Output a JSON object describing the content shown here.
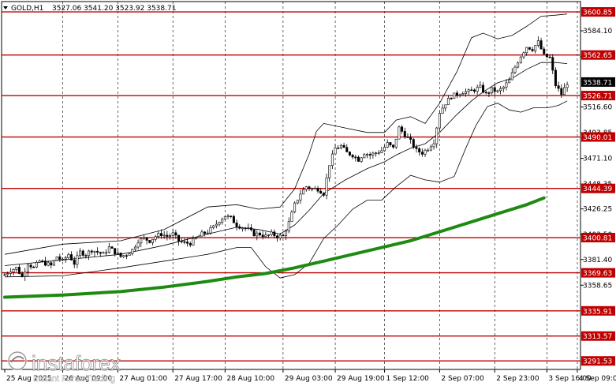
{
  "header": {
    "symbol": "GOLD,H1",
    "ohlc": "3527.06 3541.20 3523.92 3538.71"
  },
  "watermark": {
    "brand": "instaforex",
    "tagline": "Instant Forex Trading"
  },
  "colors": {
    "candles": "#000000",
    "bands": "#000000",
    "ma_long": "#1f8a12",
    "level_lines": "#c00000",
    "level_label_bg": "#c00000",
    "level_label_text": "#ffffff",
    "grid": "#000000",
    "current_price_bg": "#000000"
  },
  "chart_data": {
    "type": "candlestick",
    "instrument": "GOLD",
    "timeframe": "H1",
    "ylim": [
      3284,
      3610
    ],
    "grid": true,
    "y_ticks": [
      {
        "value": 3584.1,
        "label": "3584.10"
      },
      {
        "value": 3561.11,
        "label": "3561.11"
      },
      {
        "value": 3516.6,
        "label": "3516.60"
      },
      {
        "value": 3493.85,
        "label": "3493.85"
      },
      {
        "value": 3471.1,
        "label": "3471.10"
      },
      {
        "value": 3448.35,
        "label": "3448.35"
      },
      {
        "value": 3426.25,
        "label": "3426.25"
      },
      {
        "value": 3403.5,
        "label": "3403.50"
      },
      {
        "value": 3381.4,
        "label": "3381.40"
      },
      {
        "value": 3358.65,
        "label": "3358.65"
      }
    ],
    "x_ticks": [
      "25 Aug 2025",
      "26 Aug 09:00",
      "27 Aug 01:00",
      "27 Aug 17:00",
      "28 Aug 10:00",
      "29 Aug 03:00",
      "29 Aug 19:00",
      "1 Sep 12:00",
      "2 Sep 07:00",
      "2 Sep 23:00",
      "3 Sep 16:00",
      "4 Sep 09:00"
    ],
    "current_price": {
      "value": 3538.71,
      "label": "3538.71"
    },
    "levels": [
      {
        "value": 3600.85,
        "label": "3600.85"
      },
      {
        "value": 3562.65,
        "label": "3562.65"
      },
      {
        "value": 3526.71,
        "label": "3526.71"
      },
      {
        "value": 3490.01,
        "label": "3490.01"
      },
      {
        "value": 3444.39,
        "label": "3444.39"
      },
      {
        "value": 3400.81,
        "label": "3400.81"
      },
      {
        "value": 3369.63,
        "label": "3369.63"
      },
      {
        "value": 3335.91,
        "label": "3335.91"
      },
      {
        "value": 3313.57,
        "label": "3313.57"
      },
      {
        "value": 3291.53,
        "label": "3291.53"
      }
    ],
    "close_path": [
      [
        0,
        3368
      ],
      [
        4,
        3372
      ],
      [
        8,
        3374
      ],
      [
        12,
        3366
      ],
      [
        16,
        3378
      ],
      [
        20,
        3374
      ],
      [
        24,
        3380
      ],
      [
        28,
        3378
      ],
      [
        32,
        3376
      ],
      [
        36,
        3384
      ],
      [
        40,
        3380
      ],
      [
        44,
        3386
      ],
      [
        48,
        3378
      ],
      [
        52,
        3388
      ],
      [
        56,
        3386
      ],
      [
        60,
        3390
      ],
      [
        64,
        3388
      ],
      [
        68,
        3386
      ],
      [
        72,
        3392
      ],
      [
        76,
        3388
      ],
      [
        80,
        3384
      ],
      [
        84,
        3386
      ],
      [
        88,
        3390
      ],
      [
        92,
        3398
      ],
      [
        96,
        3400
      ],
      [
        100,
        3398
      ],
      [
        104,
        3402
      ],
      [
        108,
        3404
      ],
      [
        112,
        3402
      ],
      [
        116,
        3404
      ],
      [
        120,
        3398
      ],
      [
        124,
        3396
      ],
      [
        128,
        3396
      ],
      [
        132,
        3400
      ],
      [
        136,
        3404
      ],
      [
        140,
        3406
      ],
      [
        144,
        3410
      ],
      [
        148,
        3416
      ],
      [
        152,
        3420
      ],
      [
        156,
        3418
      ],
      [
        160,
        3412
      ],
      [
        164,
        3410
      ],
      [
        168,
        3408
      ],
      [
        172,
        3404
      ],
      [
        176,
        3404
      ],
      [
        180,
        3402
      ],
      [
        184,
        3404
      ],
      [
        188,
        3402
      ],
      [
        192,
        3402
      ],
      [
        196,
        3414
      ],
      [
        200,
        3430
      ],
      [
        204,
        3440
      ],
      [
        208,
        3446
      ],
      [
        212,
        3444
      ],
      [
        216,
        3444
      ],
      [
        220,
        3440
      ],
      [
        224,
        3466
      ],
      [
        228,
        3480
      ],
      [
        232,
        3482
      ],
      [
        236,
        3476
      ],
      [
        240,
        3474
      ],
      [
        244,
        3470
      ],
      [
        248,
        3476
      ],
      [
        252,
        3474
      ],
      [
        256,
        3476
      ],
      [
        260,
        3478
      ],
      [
        264,
        3484
      ],
      [
        268,
        3480
      ],
      [
        272,
        3498
      ],
      [
        276,
        3492
      ],
      [
        280,
        3486
      ],
      [
        284,
        3478
      ],
      [
        288,
        3476
      ],
      [
        292,
        3480
      ],
      [
        296,
        3486
      ],
      [
        300,
        3512
      ],
      [
        304,
        3520
      ],
      [
        308,
        3526
      ],
      [
        312,
        3528
      ],
      [
        316,
        3530
      ],
      [
        320,
        3530
      ],
      [
        324,
        3532
      ],
      [
        328,
        3534
      ],
      [
        332,
        3528
      ],
      [
        336,
        3532
      ],
      [
        340,
        3530
      ],
      [
        344,
        3534
      ],
      [
        348,
        3540
      ],
      [
        352,
        3552
      ],
      [
        356,
        3562
      ],
      [
        360,
        3570
      ],
      [
        364,
        3568
      ],
      [
        368,
        3574
      ],
      [
        372,
        3562
      ],
      [
        376,
        3560
      ],
      [
        380,
        3536
      ],
      [
        384,
        3528
      ],
      [
        388,
        3538
      ]
    ],
    "bands_upper": [
      [
        0,
        3386
      ],
      [
        40,
        3395
      ],
      [
        80,
        3398
      ],
      [
        110,
        3408
      ],
      [
        140,
        3428
      ],
      [
        160,
        3430
      ],
      [
        175,
        3426
      ],
      [
        190,
        3428
      ],
      [
        200,
        3444
      ],
      [
        210,
        3475
      ],
      [
        215,
        3495
      ],
      [
        220,
        3502
      ],
      [
        235,
        3498
      ],
      [
        250,
        3494
      ],
      [
        262,
        3494
      ],
      [
        270,
        3505
      ],
      [
        280,
        3508
      ],
      [
        290,
        3502
      ],
      [
        300,
        3520
      ],
      [
        312,
        3548
      ],
      [
        322,
        3578
      ],
      [
        330,
        3582
      ],
      [
        340,
        3577
      ],
      [
        350,
        3580
      ],
      [
        360,
        3588
      ],
      [
        370,
        3597
      ],
      [
        380,
        3598
      ],
      [
        388,
        3599
      ]
    ],
    "bands_middle": [
      [
        0,
        3376
      ],
      [
        40,
        3381
      ],
      [
        80,
        3386
      ],
      [
        110,
        3394
      ],
      [
        140,
        3404
      ],
      [
        160,
        3410
      ],
      [
        175,
        3408
      ],
      [
        190,
        3404
      ],
      [
        200,
        3412
      ],
      [
        210,
        3425
      ],
      [
        220,
        3440
      ],
      [
        235,
        3452
      ],
      [
        250,
        3462
      ],
      [
        262,
        3468
      ],
      [
        270,
        3474
      ],
      [
        280,
        3480
      ],
      [
        290,
        3484
      ],
      [
        300,
        3494
      ],
      [
        312,
        3510
      ],
      [
        322,
        3522
      ],
      [
        330,
        3530
      ],
      [
        340,
        3538
      ],
      [
        350,
        3542
      ],
      [
        360,
        3550
      ],
      [
        370,
        3556
      ],
      [
        380,
        3556
      ],
      [
        388,
        3555
      ]
    ],
    "bands_lower": [
      [
        0,
        3366
      ],
      [
        40,
        3367
      ],
      [
        80,
        3374
      ],
      [
        110,
        3380
      ],
      [
        140,
        3386
      ],
      [
        160,
        3392
      ],
      [
        170,
        3392
      ],
      [
        180,
        3375
      ],
      [
        190,
        3365
      ],
      [
        200,
        3368
      ],
      [
        210,
        3378
      ],
      [
        220,
        3400
      ],
      [
        230,
        3412
      ],
      [
        240,
        3426
      ],
      [
        250,
        3434
      ],
      [
        260,
        3434
      ],
      [
        270,
        3446
      ],
      [
        280,
        3456
      ],
      [
        290,
        3452
      ],
      [
        300,
        3450
      ],
      [
        310,
        3455
      ],
      [
        318,
        3480
      ],
      [
        325,
        3500
      ],
      [
        333,
        3517
      ],
      [
        340,
        3520
      ],
      [
        348,
        3514
      ],
      [
        356,
        3512
      ],
      [
        365,
        3516
      ],
      [
        375,
        3516
      ],
      [
        382,
        3518
      ],
      [
        388,
        3522
      ]
    ],
    "ma_long": [
      [
        0,
        3348
      ],
      [
        40,
        3350
      ],
      [
        80,
        3353
      ],
      [
        110,
        3357
      ],
      [
        140,
        3362
      ],
      [
        160,
        3366
      ],
      [
        180,
        3369
      ],
      [
        200,
        3374
      ],
      [
        220,
        3380
      ],
      [
        240,
        3386
      ],
      [
        260,
        3392
      ],
      [
        280,
        3398
      ],
      [
        300,
        3406
      ],
      [
        320,
        3414
      ],
      [
        340,
        3422
      ],
      [
        360,
        3430
      ],
      [
        372,
        3436
      ]
    ]
  }
}
